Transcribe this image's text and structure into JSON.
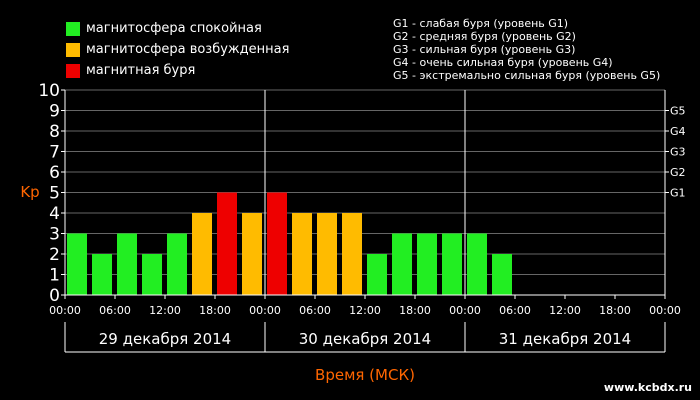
{
  "legend": {
    "items": [
      {
        "label": "магнитосфера спокойная",
        "color": "#22ee22"
      },
      {
        "label": "магнитосфера возбужденная",
        "color": "#ffbb00"
      },
      {
        "label": "магнитная буря",
        "color": "#ee0000"
      }
    ]
  },
  "glevels": [
    "G1 - слабая буря (уровень G1)",
    "G2 - средняя буря (уровень G2)",
    "G3 - сильная буря (уровень G3)",
    "G4 - очень сильная буря (уровень G4)",
    "G5 - экстремально сильная буря (уровень G5)"
  ],
  "site": "www.kcbdx.ru",
  "chart_data": {
    "type": "bar",
    "ylabel": "Kp",
    "xlabel": "Время (МСК)",
    "ylim": [
      0,
      10
    ],
    "yticks": [
      0,
      1,
      2,
      3,
      4,
      5,
      6,
      7,
      8,
      9,
      10
    ],
    "right_ticks": [
      {
        "value": 5,
        "label": "G1"
      },
      {
        "value": 6,
        "label": "G2"
      },
      {
        "value": 7,
        "label": "G3"
      },
      {
        "value": 8,
        "label": "G4"
      },
      {
        "value": 9,
        "label": "G5"
      }
    ],
    "xtick_labels": [
      "00:00",
      "06:00",
      "12:00",
      "18:00",
      "00:00",
      "06:00",
      "12:00",
      "18:00",
      "00:00",
      "06:00",
      "12:00",
      "18:00",
      "00:00"
    ],
    "days": [
      "29 декабря 2014",
      "30 декабря 2014",
      "31 декабря 2014"
    ],
    "values": [
      3,
      2,
      3,
      2,
      3,
      4,
      5,
      4,
      5,
      4,
      4,
      4,
      2,
      3,
      3,
      3,
      3,
      2
    ],
    "bar_colors": [
      "#22ee22",
      "#22ee22",
      "#22ee22",
      "#22ee22",
      "#22ee22",
      "#ffbb00",
      "#ee0000",
      "#ffbb00",
      "#ee0000",
      "#ffbb00",
      "#ffbb00",
      "#ffbb00",
      "#22ee22",
      "#22ee22",
      "#22ee22",
      "#22ee22",
      "#22ee22",
      "#22ee22"
    ],
    "colors": {
      "axis": "#ffffff",
      "grid": "#666666",
      "accent": "#ff6600"
    }
  }
}
